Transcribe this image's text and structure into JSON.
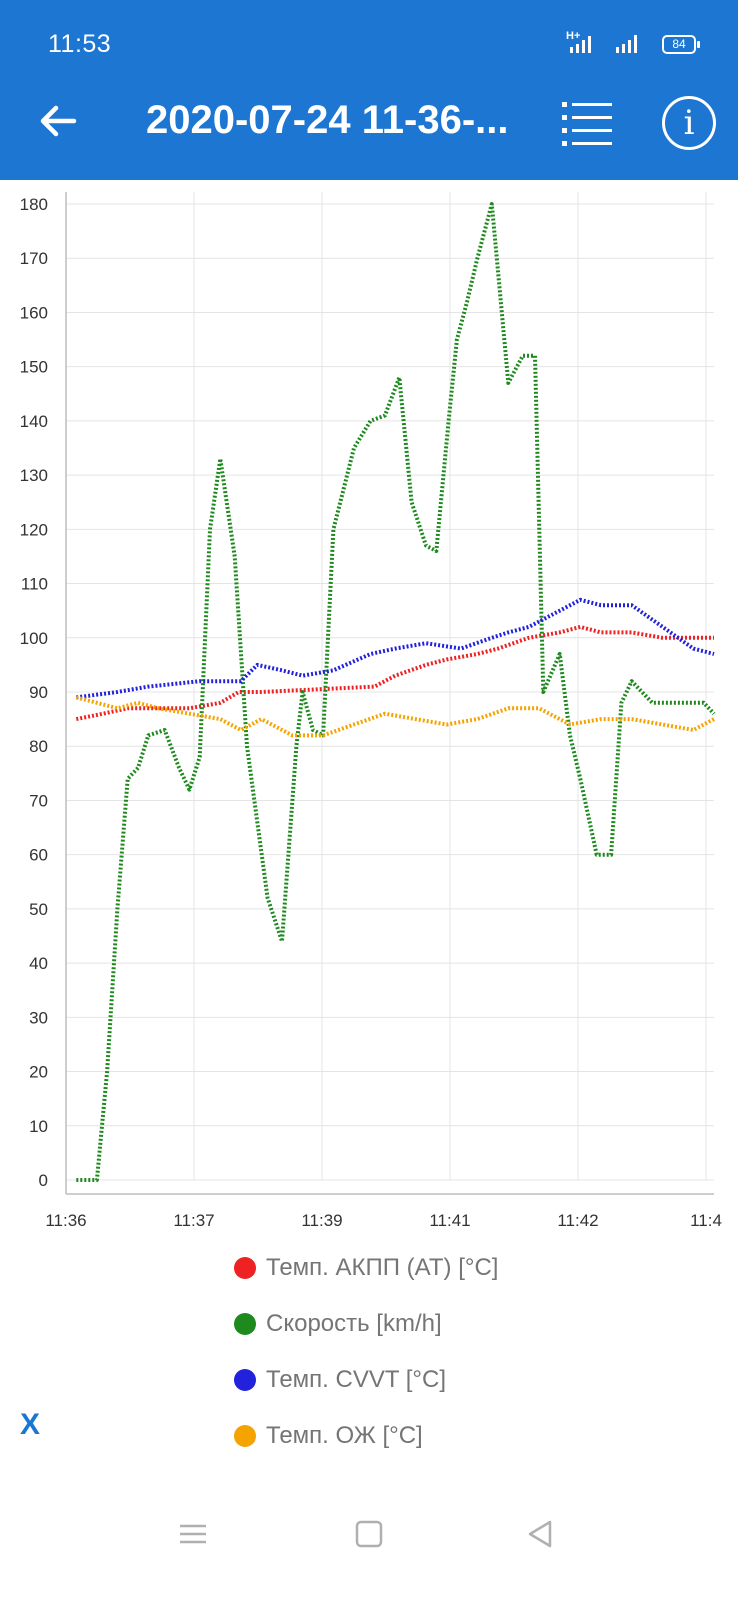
{
  "status_bar": {
    "time": "11:53",
    "battery": "84",
    "network": "H+",
    "icons": [
      "signal-h-plus-icon",
      "signal-icon",
      "battery-icon"
    ]
  },
  "app_bar": {
    "title": "2020-07-24 11-36-...",
    "back_icon": "arrow-left-icon",
    "list_icon": "list-icon",
    "info_label": "i",
    "info_icon": "info-icon"
  },
  "chart_data": {
    "type": "line",
    "x_type": "time",
    "x_range": [
      "11:36:00",
      "11:41:15"
    ],
    "x_ticks": [
      "11:36",
      "11:37",
      "11:39",
      "11:41",
      "11:42",
      "11:4"
    ],
    "ylim": [
      0,
      180
    ],
    "y_ticks": [
      0,
      10,
      20,
      30,
      40,
      50,
      60,
      70,
      80,
      90,
      100,
      110,
      120,
      130,
      140,
      150,
      160,
      170,
      180
    ],
    "grid": true,
    "legend_position": "bottom",
    "series": [
      {
        "name": "Темп. АКПП (AT) [°C]",
        "color": "#ee2222",
        "x": [
          "11:36:05",
          "11:36:18",
          "11:36:30",
          "11:37:00",
          "11:37:15",
          "11:37:24",
          "11:37:35",
          "11:38:30",
          "11:38:40",
          "11:38:55",
          "11:39:05",
          "11:39:20",
          "11:39:30",
          "11:39:45",
          "11:40:00",
          "11:40:10",
          "11:40:20",
          "11:40:35",
          "11:40:50",
          "11:41:00",
          "11:41:05",
          "11:41:15"
        ],
        "values": [
          85,
          86,
          87,
          87,
          88,
          90,
          90,
          91,
          93,
          95,
          96,
          97,
          98,
          100,
          101,
          102,
          101,
          101,
          100,
          100,
          100,
          100
        ]
      },
      {
        "name": "Скорость [km/h]",
        "color": "#1e8a1e",
        "x": [
          "11:36:05",
          "11:36:10",
          "11:36:15",
          "11:36:20",
          "11:36:25",
          "11:36:30",
          "11:36:35",
          "11:36:40",
          "11:36:48",
          "11:36:55",
          "11:37:00",
          "11:37:05",
          "11:37:10",
          "11:37:15",
          "11:37:22",
          "11:37:28",
          "11:37:38",
          "11:37:45",
          "11:37:52",
          "11:37:55",
          "11:38:00",
          "11:38:05",
          "11:38:10",
          "11:38:20",
          "11:38:28",
          "11:38:35",
          "11:38:42",
          "11:38:48",
          "11:38:55",
          "11:39:00",
          "11:39:06",
          "11:39:10",
          "11:39:15",
          "11:39:20",
          "11:39:27",
          "11:39:35",
          "11:39:42",
          "11:39:48",
          "11:39:52",
          "11:40:00",
          "11:40:05",
          "11:40:10",
          "11:40:18",
          "11:40:25",
          "11:40:30",
          "11:40:35",
          "11:40:40",
          "11:40:45",
          "11:40:50",
          "11:40:55",
          "11:41:00",
          "11:41:05",
          "11:41:10",
          "11:41:15"
        ],
        "values": [
          0,
          0,
          0,
          20,
          50,
          74,
          76,
          82,
          83,
          76,
          72,
          78,
          120,
          133,
          115,
          80,
          52,
          44,
          80,
          90,
          83,
          82,
          120,
          135,
          140,
          141,
          148,
          125,
          117,
          116,
          140,
          155,
          162,
          170,
          180,
          147,
          152,
          152,
          90,
          97,
          82,
          74,
          60,
          60,
          88,
          92,
          90,
          88,
          88,
          88,
          88,
          88,
          88,
          86
        ]
      },
      {
        "name": "Темп. CVVT [°C]",
        "color": "#2222dd",
        "x": [
          "11:36:05",
          "11:36:25",
          "11:36:40",
          "11:37:05",
          "11:37:25",
          "11:37:33",
          "11:37:45",
          "11:37:55",
          "11:38:10",
          "11:38:28",
          "11:38:40",
          "11:38:55",
          "11:39:12",
          "11:39:27",
          "11:39:35",
          "11:39:45",
          "11:40:00",
          "11:40:10",
          "11:40:20",
          "11:40:35",
          "11:40:50",
          "11:41:05",
          "11:41:15"
        ],
        "values": [
          89,
          90,
          91,
          92,
          92,
          95,
          94,
          93,
          94,
          97,
          98,
          99,
          98,
          100,
          101,
          102,
          105,
          107,
          106,
          106,
          102,
          98,
          97
        ]
      },
      {
        "name": "Темп. ОЖ [°C]",
        "color": "#f5a300",
        "x": [
          "11:36:05",
          "11:36:15",
          "11:36:25",
          "11:36:35",
          "11:36:45",
          "11:37:00",
          "11:37:15",
          "11:37:25",
          "11:37:35",
          "11:37:50",
          "11:38:05",
          "11:38:20",
          "11:38:35",
          "11:38:50",
          "11:39:05",
          "11:39:20",
          "11:39:35",
          "11:39:50",
          "11:40:05",
          "11:40:20",
          "11:40:35",
          "11:40:50",
          "11:41:05",
          "11:41:15"
        ],
        "values": [
          89,
          88,
          87,
          88,
          87,
          86,
          85,
          83,
          85,
          82,
          82,
          84,
          86,
          85,
          84,
          85,
          87,
          87,
          84,
          85,
          85,
          84,
          83,
          85
        ]
      }
    ]
  },
  "legend_close": "X",
  "navbar": {
    "menu_icon": "menu-icon",
    "home_icon": "square-home-icon",
    "back_icon": "triangle-back-icon"
  }
}
